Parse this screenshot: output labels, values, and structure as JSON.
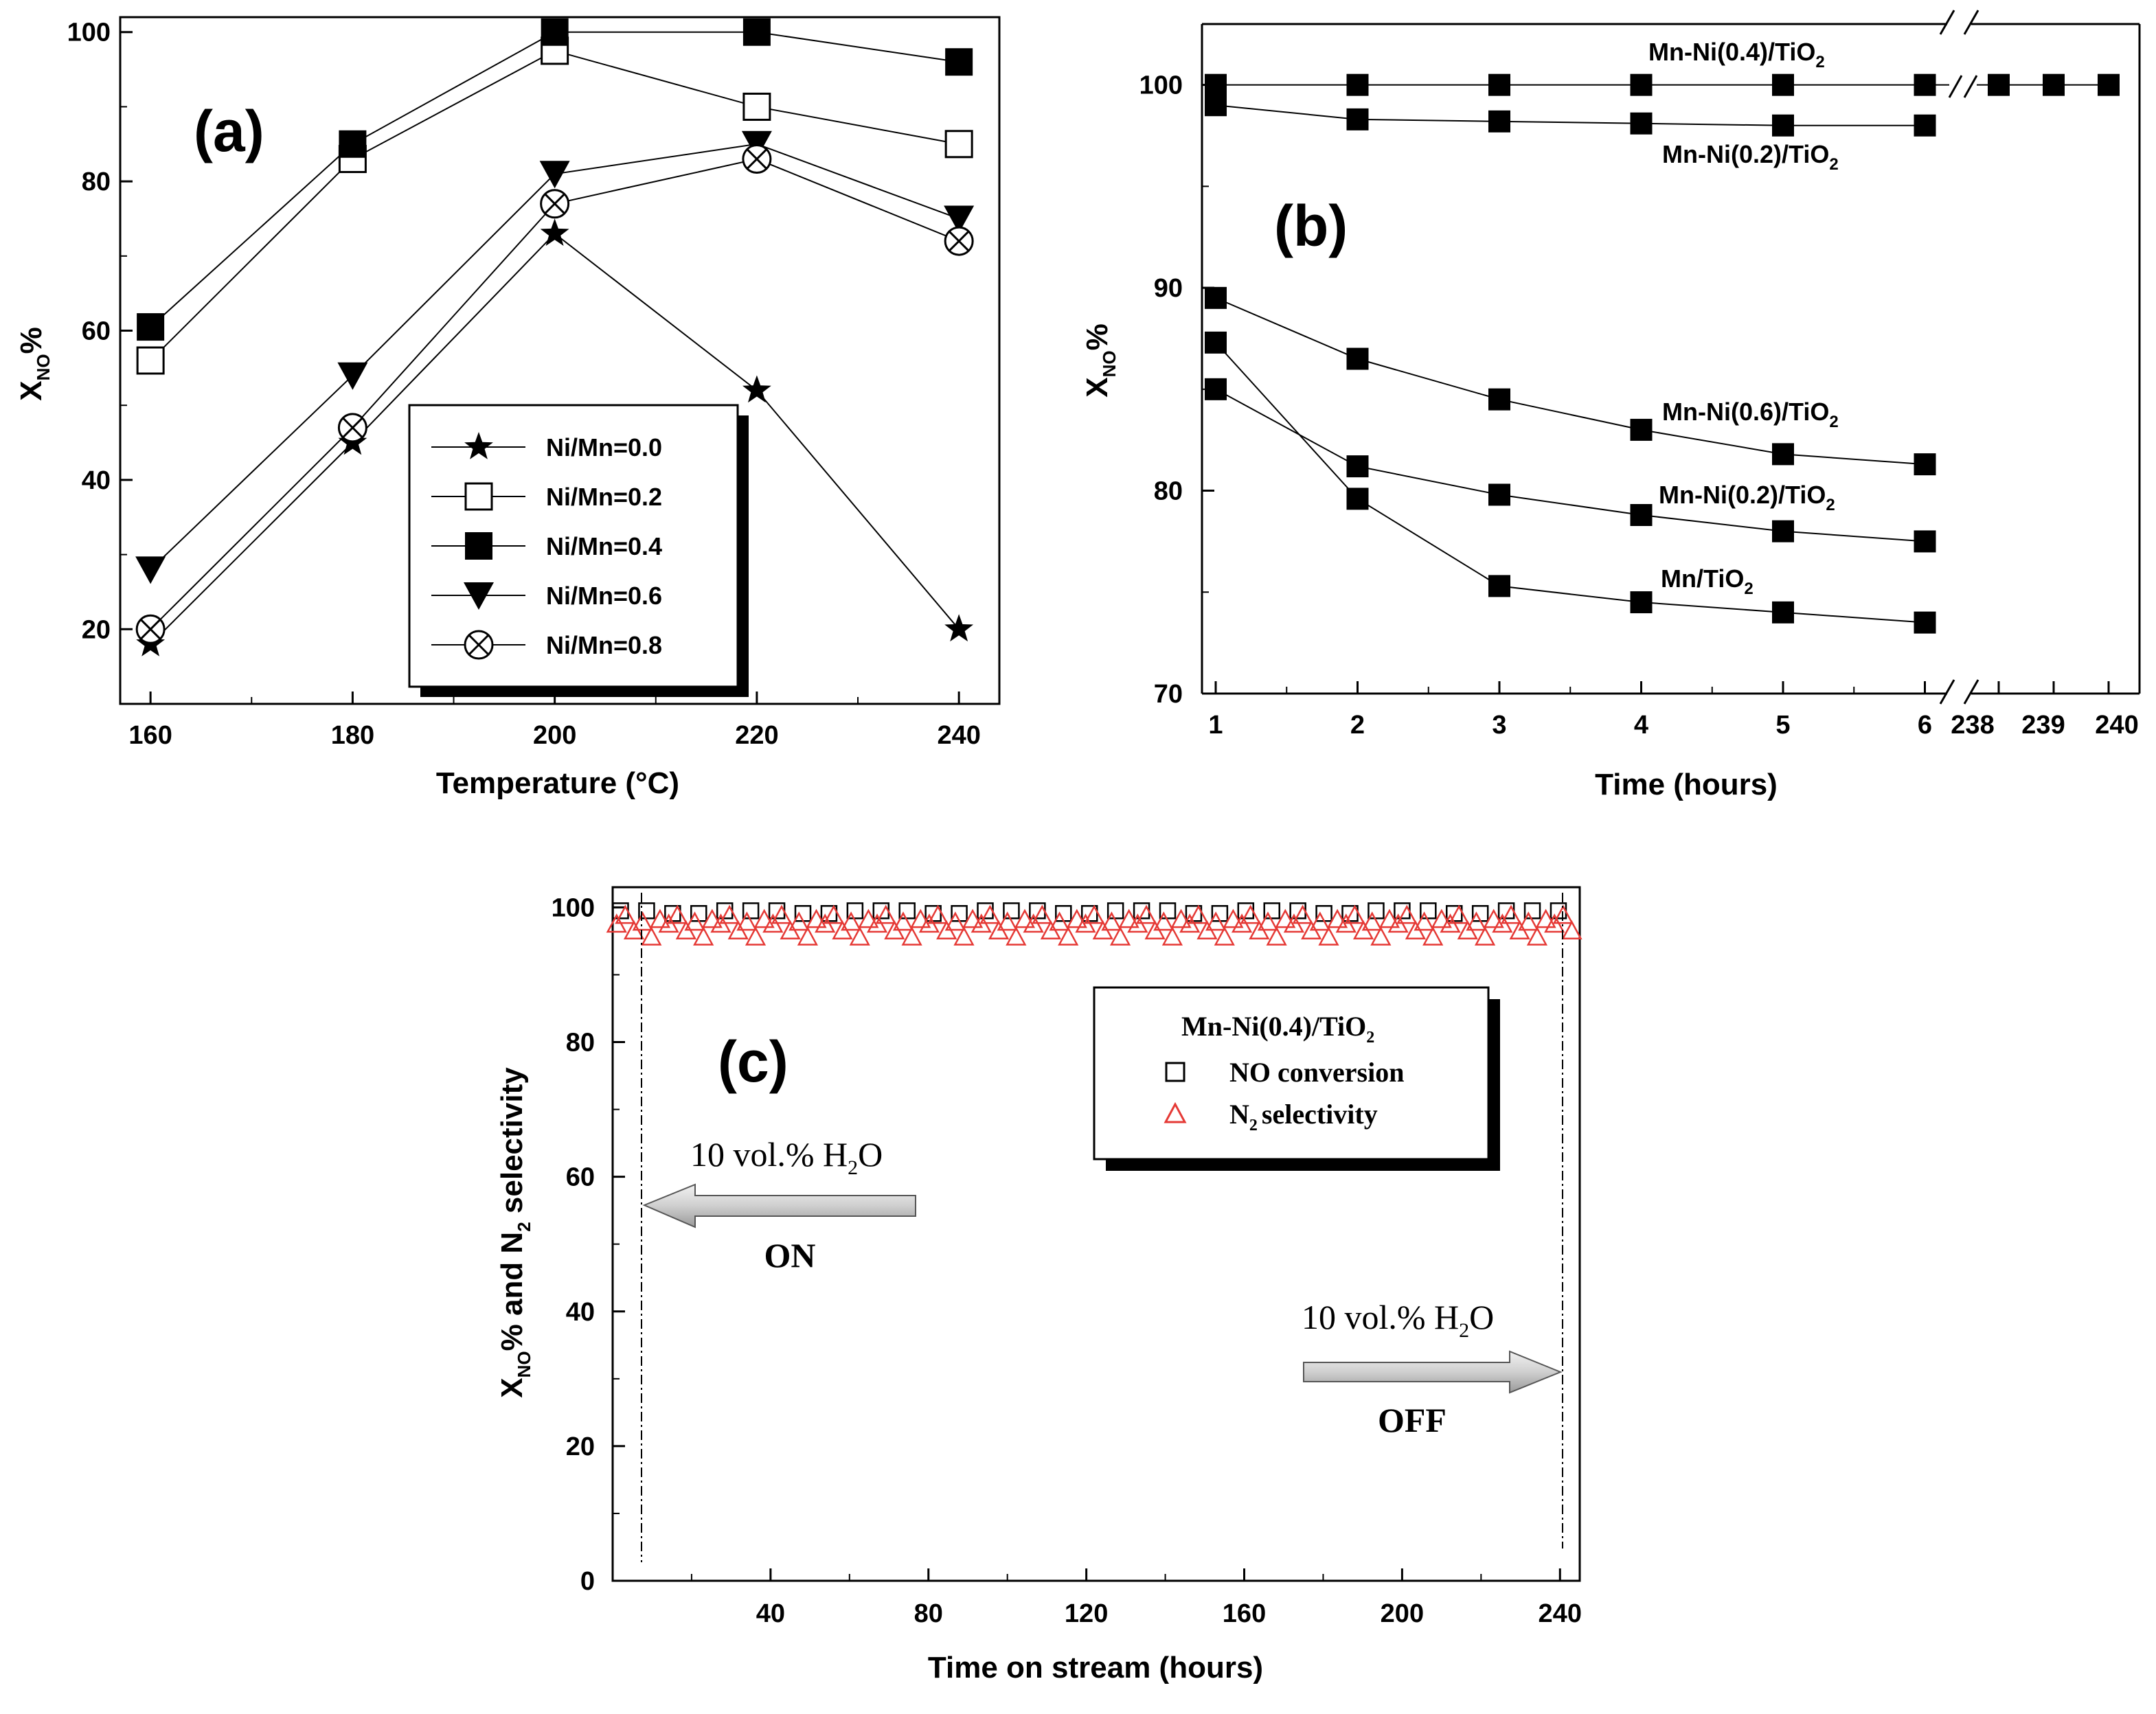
{
  "chart_data": [
    {
      "id": "a",
      "type": "line",
      "panel_label": "(a)",
      "xlabel": "Temperature (°C)",
      "ylabel": "X_NO%",
      "x": [
        160,
        180,
        200,
        220,
        240
      ],
      "xticks": [
        160,
        180,
        200,
        220,
        240
      ],
      "yticks": [
        20,
        40,
        60,
        80,
        100
      ],
      "xlim": [
        157,
        244
      ],
      "ylim": [
        10,
        102
      ],
      "legend_position": "center-right",
      "series": [
        {
          "name": "Ni/Mn=0.0",
          "marker": "star",
          "values": [
            18,
            45,
            73,
            52,
            20
          ]
        },
        {
          "name": "Ni/Mn=0.2",
          "marker": "open-square",
          "values": [
            56,
            83,
            97.5,
            90,
            85
          ]
        },
        {
          "name": "Ni/Mn=0.4",
          "marker": "filled-square",
          "values": [
            60.5,
            85,
            100,
            100,
            96
          ]
        },
        {
          "name": "Ni/Mn=0.6",
          "marker": "filled-triangle-down",
          "values": [
            28,
            54,
            81,
            85,
            75
          ]
        },
        {
          "name": "Ni/Mn=0.8",
          "marker": "circle-x",
          "values": [
            20,
            47,
            77,
            83,
            72
          ]
        }
      ]
    },
    {
      "id": "b",
      "type": "line",
      "panel_label": "(b)",
      "xlabel": "Time (hours)",
      "ylabel": "X_NO%",
      "xtick_labels": [
        "1",
        "2",
        "3",
        "4",
        "5",
        "6",
        "238",
        "239",
        "240"
      ],
      "yticks": [
        70,
        80,
        90,
        100
      ],
      "ylim": [
        70,
        103
      ],
      "axis_break": "between 6 and 238 hours",
      "series": [
        {
          "name": "Mn-Ni(0.4)/TiO2",
          "x": [
            1,
            2,
            3,
            4,
            5,
            6,
            238,
            239,
            240
          ],
          "values": [
            100,
            100,
            100,
            100,
            100,
            100,
            100,
            100,
            100
          ]
        },
        {
          "name": "Mn-Ni(0.2)/TiO2 (upper)",
          "x": [
            1,
            2,
            3,
            4,
            5,
            6
          ],
          "values": [
            99,
            98.3,
            98.2,
            98.1,
            98,
            98
          ]
        },
        {
          "name": "Mn-Ni(0.6)/TiO2",
          "x": [
            1,
            2,
            3,
            4,
            5,
            6
          ],
          "values": [
            89.5,
            86.5,
            84.5,
            83,
            81.8,
            81.3
          ]
        },
        {
          "name": "Mn-Ni(0.2)/TiO2 (lower)",
          "x": [
            1,
            2,
            3,
            4,
            5,
            6
          ],
          "values": [
            85,
            81.2,
            79.8,
            78.8,
            78,
            77.5
          ]
        },
        {
          "name": "Mn/TiO2",
          "x": [
            1,
            2,
            3,
            4,
            5,
            6
          ],
          "values": [
            87.3,
            79.6,
            75.3,
            74.5,
            74,
            73.5
          ]
        }
      ]
    },
    {
      "id": "c",
      "type": "scatter",
      "panel_label": "(c)",
      "xlabel": "Time on stream (hours)",
      "ylabel": "X_NO% and N2 selectivity",
      "xticks": [
        40,
        80,
        120,
        160,
        200,
        240
      ],
      "yticks": [
        0,
        20,
        40,
        60,
        80,
        100
      ],
      "xlim": [
        0,
        245
      ],
      "ylim": [
        0,
        103
      ],
      "legend_title": "Mn-Ni(0.4)/TiO2",
      "series": [
        {
          "name": "NO conversion",
          "marker": "open-square",
          "color": "#000000",
          "x_range": [
            0,
            244
          ],
          "value_approx": 99.5
        },
        {
          "name": "N2 selectivity",
          "marker": "open-triangle",
          "color": "#e53935",
          "x_range": [
            0,
            244
          ],
          "value_approx": [
            95,
            99
          ]
        }
      ],
      "annotations": [
        {
          "text": "10 vol.% H2O",
          "state": "ON",
          "at_hours": 7
        },
        {
          "text": "10 vol.% H2O",
          "state": "OFF",
          "at_hours": 242
        }
      ]
    }
  ],
  "text": {
    "a_title": "(a)",
    "a_xlabel": "Temperature (°C)",
    "b_title": "(b)",
    "b_xlabel": "Time (hours)",
    "b_label_04": "Mn-Ni(0.4)/TiO",
    "b_label_02_upper": "Mn-Ni(0.2)/TiO",
    "b_label_06": "Mn-Ni(0.6)/TiO",
    "b_label_02_lower": "Mn-Ni(0.2)/TiO",
    "b_label_mn": "Mn/TiO",
    "c_title": "(c)",
    "c_xlabel": "Time on stream (hours)",
    "c_legend_title": "Mn-Ni(0.4)/TiO",
    "c_legend_no": "NO conversion",
    "c_legend_n2": "selectivity",
    "c_on_label": "ON",
    "c_off_label": "OFF",
    "sub2": "2",
    "sub_no": "NO",
    "x_letter": "X",
    "pct": "%",
    "n_letter": "N",
    "h2o_text_1": "10 vol.% H",
    "h2o_text_2": "O",
    "ylabel_c_part": "% and N",
    "ylabel_c_tail": " selectivity"
  },
  "colors": {
    "red": "#e53935",
    "black": "#000000",
    "arrow_fill": "#d8d8d8"
  }
}
